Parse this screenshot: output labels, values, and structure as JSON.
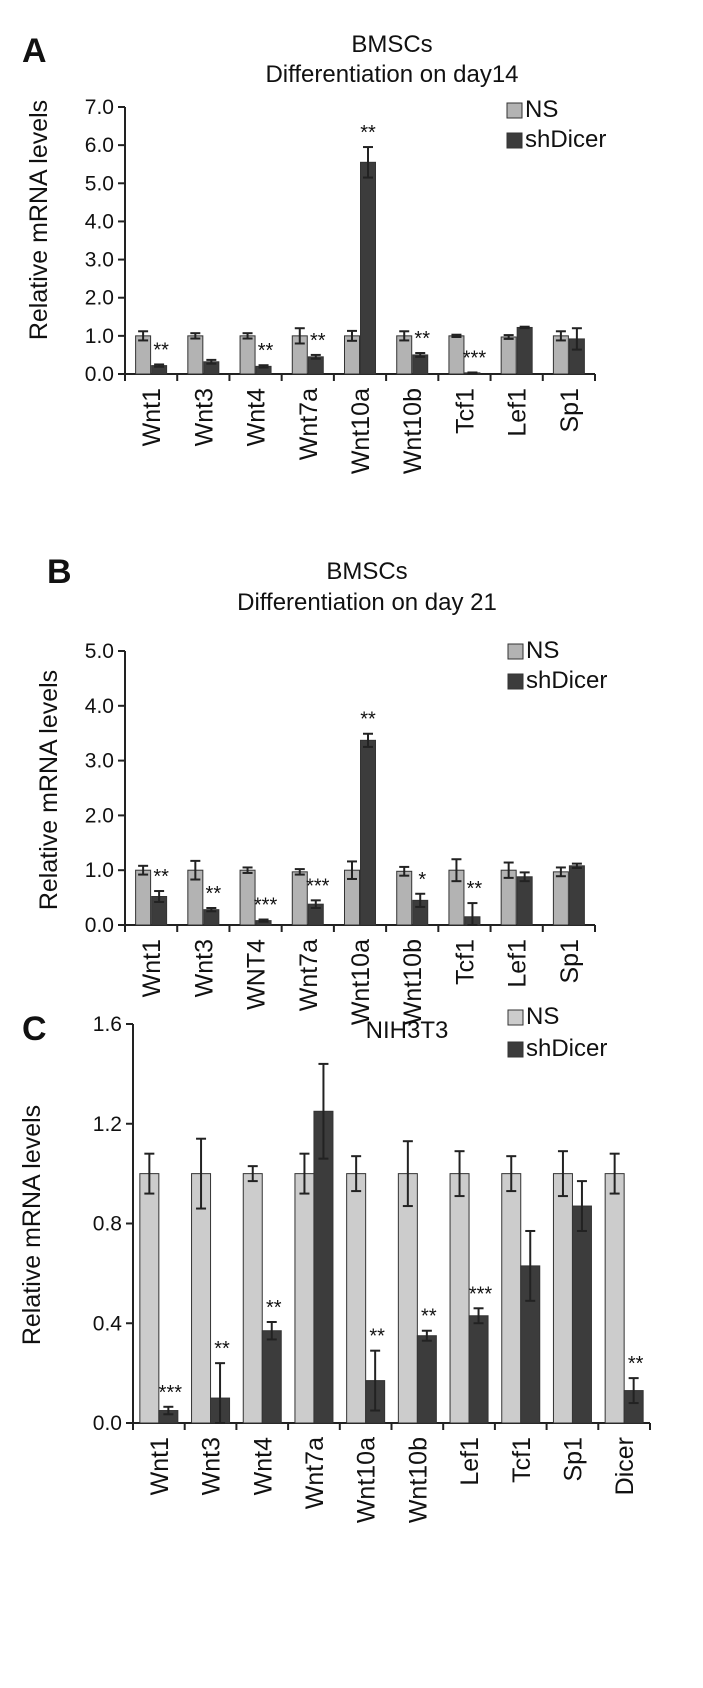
{
  "chart_data": [
    {
      "type": "bar",
      "panel_label": "A",
      "title": "BMSCs",
      "subtitle": "Differentiation on day14",
      "xlabel": "",
      "ylabel": "Relative mRNA levels",
      "ylim": [
        0,
        7
      ],
      "yticks": [
        "0.0",
        "1.0",
        "2.0",
        "3.0",
        "4.0",
        "5.0",
        "6.0",
        "7.0"
      ],
      "ytick_values": [
        0,
        1,
        2,
        3,
        4,
        5,
        6,
        7
      ],
      "grid": false,
      "legend_position": "top-right",
      "categories": [
        "Wnt1",
        "Wnt3",
        "Wnt4",
        "Wnt7a",
        "Wnt10a",
        "Wnt10b",
        "Tcf1",
        "Lef1",
        "Sp1"
      ],
      "series": [
        {
          "name": "NS",
          "color": "#b3b3b3",
          "values": [
            1.0,
            1.0,
            1.0,
            1.0,
            1.0,
            1.0,
            1.0,
            0.97,
            1.0
          ],
          "errors": [
            0.12,
            0.07,
            0.07,
            0.2,
            0.13,
            0.12,
            0.03,
            0.05,
            0.12
          ]
        },
        {
          "name": "shDicer",
          "color": "#3c3c3c",
          "values": [
            0.22,
            0.32,
            0.2,
            0.45,
            5.55,
            0.5,
            0.03,
            1.22,
            0.92
          ],
          "errors": [
            0.03,
            0.05,
            0.03,
            0.05,
            0.4,
            0.05,
            0.01,
            0.02,
            0.28
          ]
        }
      ],
      "annotations": [
        "**",
        "",
        "**",
        "**",
        "**",
        "**",
        "***",
        "",
        ""
      ]
    },
    {
      "type": "bar",
      "panel_label": "B",
      "title": "BMSCs",
      "subtitle": "Differentiation on day 21",
      "xlabel": "",
      "ylabel": "Relative mRNA levels",
      "ylim": [
        0,
        5
      ],
      "yticks": [
        "0.0",
        "1.0",
        "2.0",
        "3.0",
        "4.0",
        "5.0"
      ],
      "ytick_values": [
        0,
        1,
        2,
        3,
        4,
        5
      ],
      "grid": false,
      "legend_position": "top-right",
      "categories": [
        "Wnt1",
        "Wnt3",
        "WNT4",
        "Wnt7a",
        "Wnt10a",
        "Wnt10b",
        "Tcf1",
        "Lef1",
        "Sp1"
      ],
      "series": [
        {
          "name": "NS",
          "color": "#b3b3b3",
          "values": [
            1.0,
            1.0,
            1.0,
            0.97,
            1.0,
            0.98,
            1.0,
            1.0,
            0.97
          ],
          "errors": [
            0.08,
            0.17,
            0.05,
            0.05,
            0.16,
            0.08,
            0.2,
            0.14,
            0.08
          ]
        },
        {
          "name": "shDicer",
          "color": "#3c3c3c",
          "values": [
            0.52,
            0.28,
            0.08,
            0.38,
            3.37,
            0.45,
            0.15,
            0.88,
            1.08
          ],
          "errors": [
            0.1,
            0.03,
            0.02,
            0.07,
            0.12,
            0.12,
            0.25,
            0.08,
            0.04
          ]
        }
      ],
      "annotations": [
        "**",
        "**",
        "***",
        "***",
        "**",
        "*",
        "**",
        "",
        ""
      ]
    },
    {
      "type": "bar",
      "panel_label": "C",
      "title": "NIH3T3",
      "subtitle": "",
      "xlabel": "",
      "ylabel": "Relative mRNA levels",
      "ylim": [
        0,
        1.6
      ],
      "yticks": [
        "0.0",
        "0.4",
        "0.8",
        "1.2",
        "1.6"
      ],
      "ytick_values": [
        0,
        0.4,
        0.8,
        1.2,
        1.6
      ],
      "grid": false,
      "legend_position": "top-right",
      "categories": [
        "Wnt1",
        "Wnt3",
        "Wnt4",
        "Wnt7a",
        "Wnt10a",
        "Wnt10b",
        "Lef1",
        "Tcf1",
        "Sp1",
        "Dicer"
      ],
      "series": [
        {
          "name": "NS",
          "color": "#cccccc",
          "values": [
            1.0,
            1.0,
            1.0,
            1.0,
            1.0,
            1.0,
            1.0,
            1.0,
            1.0,
            1.0
          ],
          "errors": [
            0.08,
            0.14,
            0.03,
            0.08,
            0.07,
            0.13,
            0.09,
            0.07,
            0.09,
            0.08
          ]
        },
        {
          "name": "shDicer",
          "color": "#3c3c3c",
          "values": [
            0.05,
            0.1,
            0.37,
            1.25,
            0.17,
            0.35,
            0.43,
            0.63,
            0.87,
            0.13
          ],
          "errors": [
            0.015,
            0.14,
            0.035,
            0.19,
            0.12,
            0.02,
            0.03,
            0.14,
            0.1,
            0.05
          ]
        }
      ],
      "annotations": [
        "***",
        "**",
        "**",
        "",
        "**",
        "**",
        "***",
        "",
        "",
        "**"
      ]
    }
  ]
}
